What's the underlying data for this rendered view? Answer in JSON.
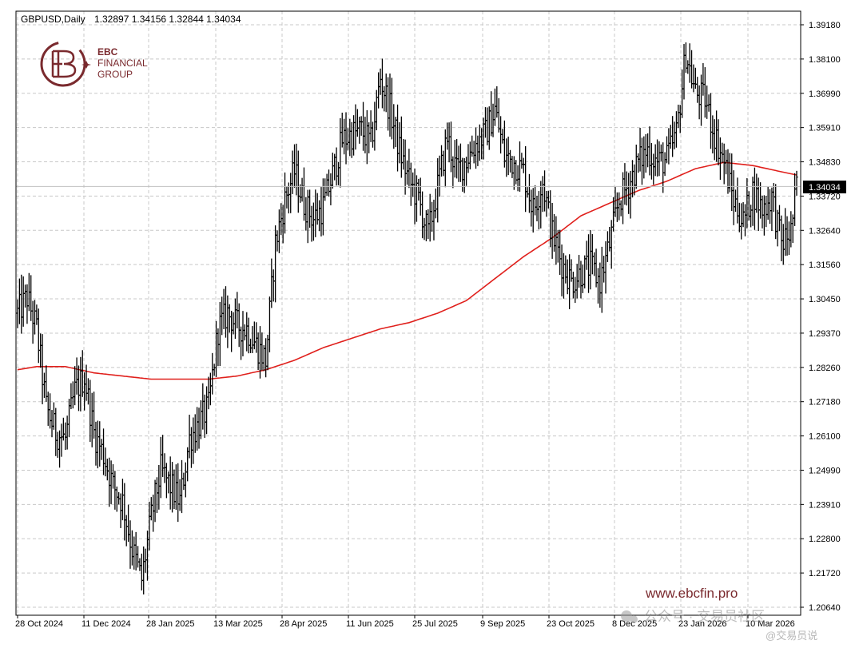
{
  "header": {
    "symbol": "GBPUSD,Daily",
    "ohlc": "1.32897 1.34156 1.32844 1.34034"
  },
  "logo": {
    "line1": "EBC",
    "line2": "FINANCIAL",
    "line3": "GROUP",
    "color": "#7a2a2e"
  },
  "watermark": {
    "url": "www.ebcfin.pro",
    "wechat": "公众号 · 交易员社区",
    "weibo": "@交易员说"
  },
  "colors": {
    "grid": "#c8c8c8",
    "bars": "#000000",
    "ma": "#e0201c",
    "last_line": "#c0c0c0",
    "background": "#ffffff"
  },
  "chart_data": {
    "type": "ohlc",
    "y_ticks": [
      "1.39180",
      "1.38100",
      "1.36990",
      "1.35910",
      "1.34830",
      "1.33720",
      "1.32640",
      "1.31560",
      "1.30450",
      "1.29370",
      "1.28260",
      "1.27180",
      "1.26100",
      "1.24990",
      "1.23910",
      "1.22800",
      "1.21720",
      "1.20640"
    ],
    "x_ticks": [
      "28 Oct 2024",
      "11 Dec 2024",
      "28 Jan 2025",
      "13 Mar 2025",
      "28 Apr 2025",
      "11 Jun 2025",
      "25 Jul 2025",
      "9 Sep 2025",
      "23 Oct 2025",
      "8 Dec 2025",
      "23 Jan 2026",
      "10 Mar 2026"
    ],
    "ylim": [
      1.2064,
      1.3918
    ],
    "last_price": "1.34034",
    "close_anchors": [
      [
        0,
        1.3
      ],
      [
        5,
        1.305
      ],
      [
        10,
        1.295
      ],
      [
        15,
        1.27
      ],
      [
        20,
        1.262
      ],
      [
        25,
        1.26
      ],
      [
        30,
        1.275
      ],
      [
        35,
        1.28
      ],
      [
        40,
        1.262
      ],
      [
        45,
        1.255
      ],
      [
        50,
        1.245
      ],
      [
        55,
        1.24
      ],
      [
        60,
        1.225
      ],
      [
        65,
        1.215
      ],
      [
        70,
        1.235
      ],
      [
        75,
        1.25
      ],
      [
        80,
        1.245
      ],
      [
        85,
        1.24
      ],
      [
        90,
        1.26
      ],
      [
        95,
        1.265
      ],
      [
        100,
        1.27
      ],
      [
        105,
        1.295
      ],
      [
        110,
        1.3
      ],
      [
        115,
        1.296
      ],
      [
        120,
        1.295
      ],
      [
        125,
        1.29
      ],
      [
        130,
        1.285
      ],
      [
        135,
        1.322
      ],
      [
        140,
        1.336
      ],
      [
        145,
        1.345
      ],
      [
        150,
        1.335
      ],
      [
        155,
        1.33
      ],
      [
        160,
        1.334
      ],
      [
        165,
        1.344
      ],
      [
        170,
        1.355
      ],
      [
        175,
        1.357
      ],
      [
        180,
        1.358
      ],
      [
        185,
        1.354
      ],
      [
        190,
        1.375
      ],
      [
        195,
        1.365
      ],
      [
        200,
        1.352
      ],
      [
        205,
        1.342
      ],
      [
        210,
        1.336
      ],
      [
        215,
        1.325
      ],
      [
        220,
        1.34
      ],
      [
        225,
        1.356
      ],
      [
        230,
        1.345
      ],
      [
        235,
        1.349
      ],
      [
        240,
        1.354
      ],
      [
        245,
        1.357
      ],
      [
        250,
        1.365
      ],
      [
        255,
        1.35
      ],
      [
        260,
        1.348
      ],
      [
        265,
        1.345
      ],
      [
        270,
        1.333
      ],
      [
        275,
        1.342
      ],
      [
        280,
        1.325
      ],
      [
        285,
        1.316
      ],
      [
        290,
        1.31
      ],
      [
        295,
        1.313
      ],
      [
        300,
        1.315
      ],
      [
        305,
        1.31
      ],
      [
        310,
        1.322
      ],
      [
        315,
        1.336
      ],
      [
        320,
        1.341
      ],
      [
        325,
        1.348
      ],
      [
        330,
        1.352
      ],
      [
        335,
        1.348
      ],
      [
        340,
        1.349
      ],
      [
        345,
        1.357
      ],
      [
        350,
        1.383
      ],
      [
        355,
        1.37
      ],
      [
        360,
        1.368
      ],
      [
        365,
        1.357
      ],
      [
        370,
        1.348
      ],
      [
        375,
        1.336
      ],
      [
        380,
        1.329
      ],
      [
        385,
        1.339
      ],
      [
        390,
        1.333
      ],
      [
        395,
        1.337
      ],
      [
        400,
        1.322
      ],
      [
        405,
        1.326
      ],
      [
        408,
        1.34
      ]
    ],
    "ma_anchors": [
      [
        0,
        1.282
      ],
      [
        10,
        1.283
      ],
      [
        25,
        1.283
      ],
      [
        40,
        1.281
      ],
      [
        55,
        1.28
      ],
      [
        70,
        1.279
      ],
      [
        85,
        1.279
      ],
      [
        100,
        1.279
      ],
      [
        115,
        1.28
      ],
      [
        130,
        1.282
      ],
      [
        145,
        1.285
      ],
      [
        160,
        1.289
      ],
      [
        175,
        1.292
      ],
      [
        190,
        1.295
      ],
      [
        205,
        1.297
      ],
      [
        220,
        1.3
      ],
      [
        235,
        1.304
      ],
      [
        250,
        1.311
      ],
      [
        265,
        1.318
      ],
      [
        280,
        1.324
      ],
      [
        295,
        1.331
      ],
      [
        310,
        1.335
      ],
      [
        325,
        1.339
      ],
      [
        340,
        1.342
      ],
      [
        355,
        1.346
      ],
      [
        370,
        1.348
      ],
      [
        385,
        1.347
      ],
      [
        400,
        1.345
      ],
      [
        408,
        1.344
      ]
    ]
  }
}
